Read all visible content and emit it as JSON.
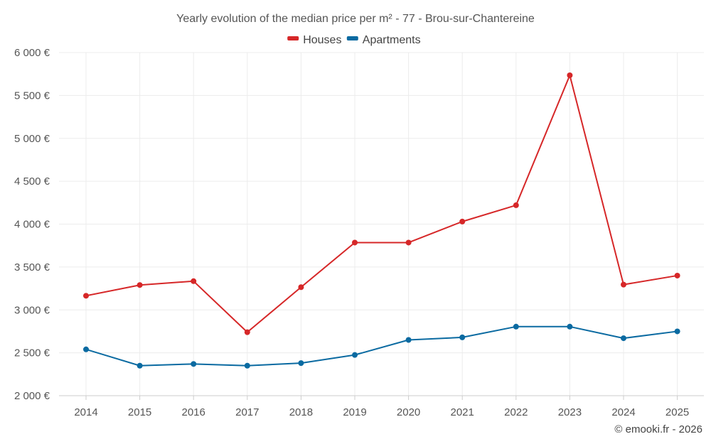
{
  "chart_data": {
    "type": "line",
    "title": "Yearly evolution of the median price per m² - 77 - Brou-sur-Chantereine",
    "x": [
      "2014",
      "2015",
      "2016",
      "2017",
      "2018",
      "2019",
      "2020",
      "2021",
      "2022",
      "2023",
      "2024",
      "2025"
    ],
    "ylim": [
      2000,
      6000
    ],
    "yticks": [
      2000,
      2500,
      3000,
      3500,
      4000,
      4500,
      5000,
      5500,
      6000
    ],
    "ytick_labels": [
      "2 000 €",
      "2 500 €",
      "3 000 €",
      "3 500 €",
      "4 000 €",
      "4 500 €",
      "5 000 €",
      "5 500 €",
      "6 000 €"
    ],
    "grid": true,
    "legend_position": "top-center",
    "series": [
      {
        "name": "Houses",
        "color": "#d62728",
        "values": [
          3165,
          3290,
          3335,
          2740,
          3265,
          3785,
          3785,
          4030,
          4220,
          5735,
          3295,
          3400
        ]
      },
      {
        "name": "Apartments",
        "color": "#0a6aa1",
        "values": [
          2540,
          2350,
          2370,
          2350,
          2380,
          2475,
          2650,
          2680,
          2805,
          2805,
          2670,
          2750
        ]
      }
    ]
  },
  "credit": "© emooki.fr - 2026"
}
